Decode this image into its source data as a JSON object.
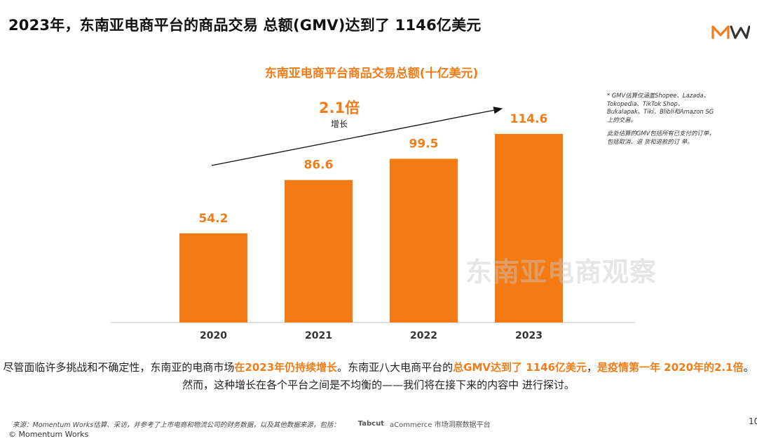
{
  "header": {
    "title": "2023年，东南亚电商平台的商品交易 总额(GMV)达到了 1146亿美元",
    "logo_text": "MW"
  },
  "chart_data": {
    "type": "bar",
    "title": "东南亚电商平台商品交易总额(十亿美元)",
    "categories": [
      "2020",
      "2021",
      "2022",
      "2023"
    ],
    "values": [
      54.2,
      86.6,
      99.5,
      114.6
    ],
    "value_labels": [
      "54.2",
      "86.6",
      "99.5",
      "114.6"
    ],
    "bar_color": "#f47b14",
    "label_color": "#f07d19",
    "xlabel": "",
    "ylabel": "",
    "ylim": [
      0,
      114.6
    ],
    "grid": false,
    "annotation": {
      "value": "2.1倍",
      "label": "增长"
    }
  },
  "footnote": {
    "line1": "* GMV估算仅涵盖Shopee、Lazada、Tokopedia、TikTok Shop、Bukalapak、Tiki、Blibli和Amazon SG上的交易。",
    "line2": "此处估算的GMV包括所有已支付的订单，包括取消、退 货和退款的订 单。"
  },
  "watermark": "东南亚电商观察",
  "summary": {
    "p1": "尽管面临许多挑战和不确定性，东南亚的电商市场",
    "h1": "在2023年仍持续增长",
    "p2": "。东南亚八大电商平台的",
    "h2": "总GMV达到了 1146亿美元",
    "p3": "，",
    "h3": "是疫情第一年 2020年的2.1倍",
    "p4": "。然而，这种增长在各个平台之间是不均衡的——我们将在接下来的内容中 进行探讨。"
  },
  "source": {
    "text": "来源：Momentum Works估算、采访，并参考了上市电商和物流公司的财务数据，以及其他数据来源，包括：",
    "brand1": "Tabcut",
    "brand2": "aCommerce 市场洞察数据平台"
  },
  "footer": {
    "copyright": "© Momentum Works",
    "page_number": "10"
  },
  "colors": {
    "accent": "#f07d19",
    "text": "#222222"
  }
}
